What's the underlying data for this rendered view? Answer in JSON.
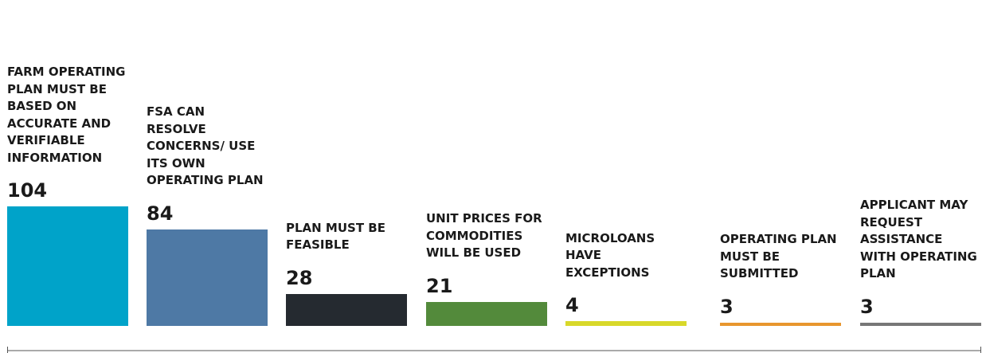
{
  "chart_data": {
    "type": "bar",
    "categories": [
      "FARM OPERATING PLAN MUST BE BASED ON ACCURATE AND VERIFIABLE INFORMATION",
      "FSA CAN RESOLVE CONCERNS/ USE ITS OWN OPERATING PLAN",
      "PLAN MUST BE FEASIBLE",
      "UNIT PRICES FOR COMMODITIES WILL BE USED",
      "MICROLOANS HAVE EXCEPTIONS",
      "OPERATING PLAN MUST BE SUBMITTED",
      "APPLICANT MAY REQUEST ASSISTANCE WITH OPERATING PLAN"
    ],
    "values": [
      104,
      84,
      28,
      21,
      4,
      3,
      3
    ],
    "colors": [
      "#00a3c9",
      "#4e79a5",
      "#252a30",
      "#538a3b",
      "#d8d82a",
      "#e8962e",
      "#777777"
    ]
  }
}
